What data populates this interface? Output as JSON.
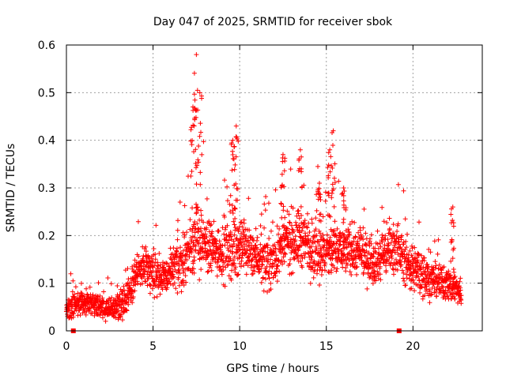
{
  "chart_data": {
    "type": "scatter",
    "title": "Day 047 of 2025, SRMTID for receiver sbok",
    "xlabel": "GPS time / hours",
    "ylabel": "SRMTID / TECUs",
    "xlim": [
      0,
      24
    ],
    "ylim": [
      0,
      0.6
    ],
    "xticks": [
      0,
      5,
      10,
      15,
      20
    ],
    "xtick_labels": [
      "0",
      "5",
      "10",
      "15",
      "20"
    ],
    "yticks": [
      0,
      0.1,
      0.2,
      0.3,
      0.4,
      0.5,
      0.6
    ],
    "ytick_labels": [
      "0",
      "0.1",
      "0.2",
      "0.3",
      "0.4",
      "0.5",
      "0.6"
    ],
    "grid": true,
    "marker": "+",
    "color": "#ff0000",
    "envelope": {
      "x": [
        0.0,
        0.5,
        1.0,
        1.5,
        2.0,
        2.5,
        3.0,
        3.5,
        4.0,
        4.5,
        5.0,
        5.5,
        6.0,
        6.5,
        7.0,
        7.5,
        8.0,
        8.5,
        9.0,
        9.5,
        10.0,
        10.5,
        11.0,
        11.5,
        12.0,
        12.5,
        13.0,
        13.5,
        14.0,
        14.5,
        15.0,
        15.5,
        16.0,
        16.5,
        17.0,
        17.5,
        18.0,
        18.5,
        19.0,
        19.5,
        20.0,
        20.5,
        21.0,
        21.5,
        22.0,
        22.5,
        22.8
      ],
      "median": [
        0.05,
        0.055,
        0.06,
        0.055,
        0.05,
        0.045,
        0.05,
        0.07,
        0.12,
        0.14,
        0.13,
        0.11,
        0.12,
        0.14,
        0.16,
        0.2,
        0.18,
        0.17,
        0.17,
        0.17,
        0.18,
        0.17,
        0.16,
        0.14,
        0.15,
        0.18,
        0.19,
        0.19,
        0.18,
        0.17,
        0.16,
        0.17,
        0.17,
        0.17,
        0.16,
        0.15,
        0.15,
        0.17,
        0.18,
        0.15,
        0.13,
        0.12,
        0.11,
        0.1,
        0.1,
        0.09,
        0.07
      ],
      "spread": [
        0.02,
        0.02,
        0.02,
        0.02,
        0.02,
        0.02,
        0.02,
        0.03,
        0.03,
        0.03,
        0.04,
        0.03,
        0.04,
        0.05,
        0.05,
        0.06,
        0.05,
        0.04,
        0.05,
        0.05,
        0.05,
        0.04,
        0.04,
        0.04,
        0.05,
        0.05,
        0.05,
        0.05,
        0.05,
        0.05,
        0.05,
        0.05,
        0.04,
        0.04,
        0.04,
        0.04,
        0.04,
        0.04,
        0.04,
        0.04,
        0.04,
        0.04,
        0.03,
        0.03,
        0.03,
        0.03,
        0.02
      ],
      "n_points": 2400
    },
    "spikes": [
      {
        "x": 7.5,
        "y_max": 0.58
      },
      {
        "x": 7.7,
        "y_max": 0.5
      },
      {
        "x": 7.3,
        "y_max": 0.47
      },
      {
        "x": 9.8,
        "y_max": 0.43
      },
      {
        "x": 9.6,
        "y_max": 0.4
      },
      {
        "x": 15.4,
        "y_max": 0.42
      },
      {
        "x": 15.2,
        "y_max": 0.38
      },
      {
        "x": 12.5,
        "y_max": 0.37
      },
      {
        "x": 13.5,
        "y_max": 0.38
      },
      {
        "x": 14.6,
        "y_max": 0.31
      },
      {
        "x": 16.0,
        "y_max": 0.3
      },
      {
        "x": 22.3,
        "y_max": 0.26
      }
    ],
    "gap_markers_x": [
      0.4,
      19.2
    ]
  }
}
